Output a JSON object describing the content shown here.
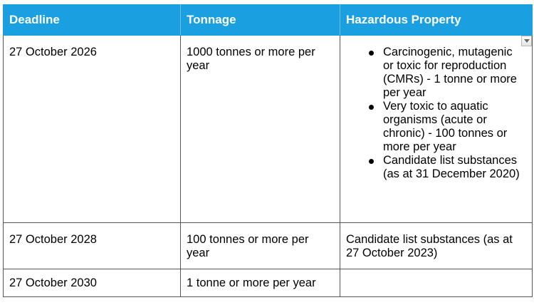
{
  "table": {
    "headers": [
      "Deadline",
      "Tonnage",
      "Hazardous Property"
    ],
    "rows": [
      {
        "deadline": "27 October 2026",
        "tonnage": "1000 tonnes or more per year",
        "hazard_items": [
          "Carcinogenic, mutagenic or toxic for reproduction (CMRs) - 1 tonne or more per year",
          "Very toxic to aquatic organisms (acute or chronic) - 100 tonnes or more per year",
          "Candidate list substances (as at 31 December 2020)"
        ]
      },
      {
        "deadline": "27 October 2028",
        "tonnage": "100 tonnes or more per year",
        "hazard_text": "Candidate list substances (as at 27 October 2023)"
      },
      {
        "deadline": "27 October 2030",
        "tonnage": "1 tonne or more per year",
        "hazard_text": ""
      }
    ]
  },
  "colors": {
    "header_bg": "#1aa0e0",
    "header_text": "#ffffff",
    "border": "#555555"
  },
  "icons": {
    "dropdown": "chevron-down-icon"
  }
}
